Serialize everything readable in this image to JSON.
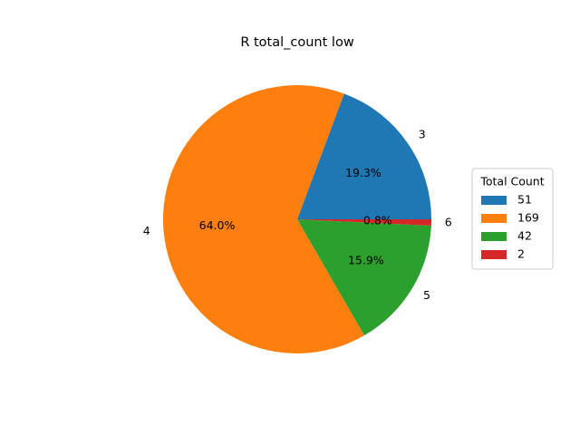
{
  "chart_data": {
    "type": "pie",
    "title": "R total_count low",
    "categories": [
      "3",
      "4",
      "5",
      "6"
    ],
    "values": [
      51,
      169,
      42,
      2
    ],
    "percent_labels": [
      "19.3%",
      "64.0%",
      "15.9%",
      "0.8%"
    ],
    "colors": [
      "#1f77b4",
      "#ff7f0e",
      "#2ca02c",
      "#d62728"
    ],
    "legend": {
      "title": "Total Count",
      "entries": [
        "51",
        "169",
        "42",
        "2"
      ],
      "placement": "center-right"
    }
  }
}
